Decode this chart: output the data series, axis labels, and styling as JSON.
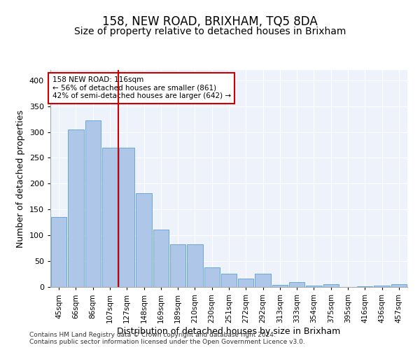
{
  "title": "158, NEW ROAD, BRIXHAM, TQ5 8DA",
  "subtitle": "Size of property relative to detached houses in Brixham",
  "xlabel": "Distribution of detached houses by size in Brixham",
  "ylabel": "Number of detached properties",
  "categories": [
    "45sqm",
    "66sqm",
    "86sqm",
    "107sqm",
    "127sqm",
    "148sqm",
    "169sqm",
    "189sqm",
    "210sqm",
    "230sqm",
    "251sqm",
    "272sqm",
    "292sqm",
    "313sqm",
    "333sqm",
    "354sqm",
    "375sqm",
    "395sqm",
    "416sqm",
    "436sqm",
    "457sqm"
  ],
  "values": [
    135,
    305,
    322,
    270,
    270,
    181,
    111,
    82,
    82,
    38,
    26,
    16,
    26,
    4,
    10,
    3,
    5,
    0,
    1,
    3,
    5
  ],
  "bar_color": "#aec6e8",
  "bar_edge_color": "#5a9fd4",
  "vline_x": 3.5,
  "vline_color": "#cc0000",
  "annotation_text": "158 NEW ROAD: 116sqm\n← 56% of detached houses are smaller (861)\n42% of semi-detached houses are larger (642) →",
  "annotation_box_color": "#ffffff",
  "annotation_box_edge": "#cc0000",
  "ylim": [
    0,
    420
  ],
  "yticks": [
    0,
    50,
    100,
    150,
    200,
    250,
    300,
    350,
    400
  ],
  "footnote1": "Contains HM Land Registry data © Crown copyright and database right 2024.",
  "footnote2": "Contains public sector information licensed under the Open Government Licence v3.0.",
  "bg_color": "#eef2fa",
  "title_fontsize": 12,
  "subtitle_fontsize": 10,
  "ylabel_fontsize": 9,
  "xlabel_fontsize": 9,
  "tick_fontsize": 7.5,
  "footnote_fontsize": 6.5
}
